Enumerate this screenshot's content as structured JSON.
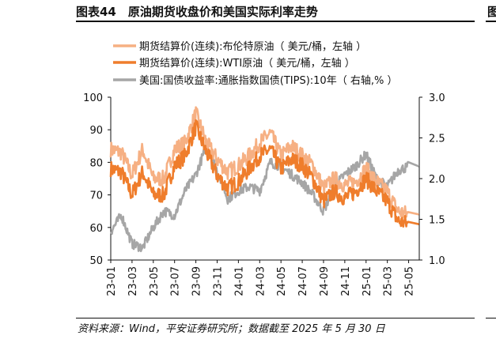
{
  "page": {
    "title": "图表44　原油期货收盘价和美国实际利率走势",
    "right_fragment": "图",
    "source": "资料来源：Wind，平安证券研究所；数据截至 2025 年 5 月 30 日"
  },
  "chart_data": {
    "type": "line",
    "legend_position": "top",
    "grid": false,
    "x_tick_labels": [
      "23-01",
      "23-03",
      "23-05",
      "23-07",
      "23-09",
      "23-11",
      "24-01",
      "24-03",
      "24-05",
      "24-07",
      "24-09",
      "24-11",
      "25-01",
      "25-03",
      "25-05"
    ],
    "y_left": {
      "ticks": [
        50,
        60,
        70,
        80,
        90,
        100
      ],
      "ylim": [
        50,
        100
      ]
    },
    "y_right": {
      "ticks": [
        "1.0",
        "1.5",
        "2.0",
        "2.5",
        "3.0"
      ],
      "ylim": [
        1.0,
        3.0
      ]
    },
    "series": [
      {
        "name": "期货结算价(连续):布伦特原油（ 美元/桶，左轴 ）",
        "axis": "left",
        "color": "#f6b083",
        "x": [
          "23-01",
          "23-02",
          "23-03",
          "23-04",
          "23-05",
          "23-06",
          "23-07",
          "23-08",
          "23-09",
          "23-10",
          "23-11",
          "23-12",
          "24-01",
          "24-02",
          "24-03",
          "24-04",
          "24-05",
          "24-06",
          "24-07",
          "24-08",
          "24-09",
          "24-10",
          "24-11",
          "24-12",
          "25-01",
          "25-02",
          "25-03",
          "25-04",
          "25-05"
        ],
        "values": [
          84,
          83,
          76,
          84,
          75,
          75,
          84,
          86,
          95,
          86,
          81,
          77,
          79,
          82,
          86,
          89,
          82,
          85,
          82,
          79,
          72,
          75,
          73,
          74,
          78,
          74,
          71,
          65,
          64
        ]
      },
      {
        "name": "期货结算价(连续):WTI原油（ 美元/桶，左轴 ）",
        "axis": "left",
        "color": "#ef7d2c",
        "x": [
          "23-01",
          "23-02",
          "23-03",
          "23-04",
          "23-05",
          "23-06",
          "23-07",
          "23-08",
          "23-09",
          "23-10",
          "23-11",
          "23-12",
          "24-01",
          "24-02",
          "24-03",
          "24-04",
          "24-05",
          "24-06",
          "24-07",
          "24-08",
          "24-09",
          "24-10",
          "24-11",
          "24-12",
          "25-01",
          "25-02",
          "25-03",
          "25-04",
          "25-05"
        ],
        "values": [
          78,
          77,
          70,
          77,
          70,
          70,
          79,
          82,
          91,
          83,
          76,
          72,
          74,
          78,
          82,
          84,
          78,
          81,
          79,
          75,
          68,
          71,
          69,
          71,
          75,
          71,
          68,
          62,
          61
        ]
      },
      {
        "name": "美国:国债收益率:通胀指数国债(TIPS):10年（ 右轴,% ）",
        "axis": "right",
        "color": "#a6a6a6",
        "x": [
          "23-01",
          "23-02",
          "23-03",
          "23-04",
          "23-05",
          "23-06",
          "23-07",
          "23-08",
          "23-09",
          "23-10",
          "23-11",
          "23-12",
          "24-01",
          "24-02",
          "24-03",
          "24-04",
          "24-05",
          "24-06",
          "24-07",
          "24-08",
          "24-09",
          "24-10",
          "24-11",
          "24-12",
          "25-01",
          "25-02",
          "25-03",
          "25-04",
          "25-05"
        ],
        "values": [
          1.35,
          1.55,
          1.2,
          1.15,
          1.4,
          1.6,
          1.55,
          1.85,
          2.05,
          2.4,
          2.1,
          1.75,
          1.85,
          1.9,
          1.85,
          2.2,
          2.15,
          2.05,
          1.95,
          1.8,
          1.6,
          1.9,
          2.05,
          2.15,
          2.3,
          2.0,
          1.9,
          2.1,
          2.15
        ]
      }
    ]
  }
}
